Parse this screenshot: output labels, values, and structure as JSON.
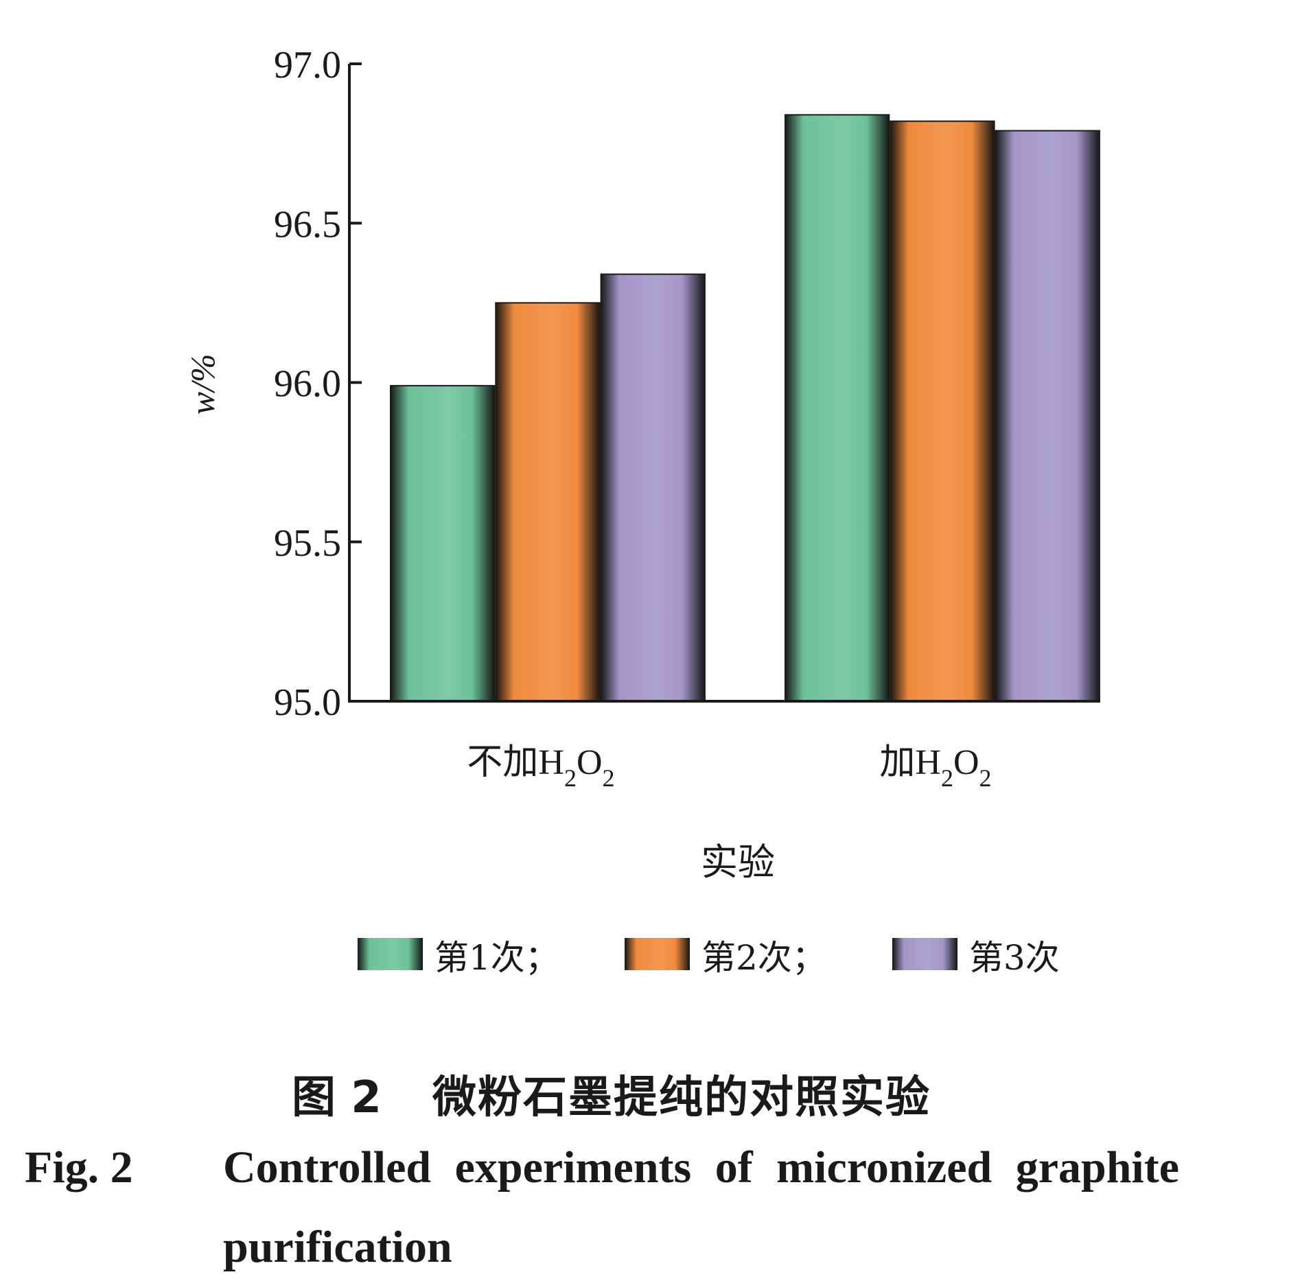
{
  "chart_data": {
    "type": "bar",
    "title": "",
    "xlabel": "实验",
    "ylabel": "w/%",
    "ylim": [
      95.0,
      97.0
    ],
    "yticks": [
      95.0,
      95.5,
      96.0,
      96.5,
      97.0
    ],
    "ytick_labels": [
      "95.0",
      "95.5",
      "96.0",
      "96.5",
      "97.0"
    ],
    "categories": [
      {
        "main": "不加H",
        "sub1": "2",
        "mid": "O",
        "sub2": "2",
        "full": "不加H2O2"
      },
      {
        "main": "加H",
        "sub1": "2",
        "mid": "O",
        "sub2": "2",
        "full": "加H2O2"
      }
    ],
    "series": [
      {
        "name": "第1次",
        "legend_label": "第1次；",
        "color": "#6cc29a",
        "values": [
          95.99,
          96.84
        ]
      },
      {
        "name": "第2次",
        "legend_label": "第2次；",
        "color": "#f08a3c",
        "values": [
          96.25,
          96.82
        ]
      },
      {
        "name": "第3次",
        "legend_label": "第3次",
        "color": "#a296c8",
        "values": [
          96.34,
          96.79
        ]
      }
    ],
    "grid": false,
    "legend_position": "bottom"
  },
  "caption": {
    "cn_fig": "图 2",
    "cn_title": "微粉石墨提纯的对照实验",
    "en_fig": "Fig. 2",
    "en_title_line1": "Controlled experiments of micronized graphite",
    "en_title_line2": "purification"
  }
}
